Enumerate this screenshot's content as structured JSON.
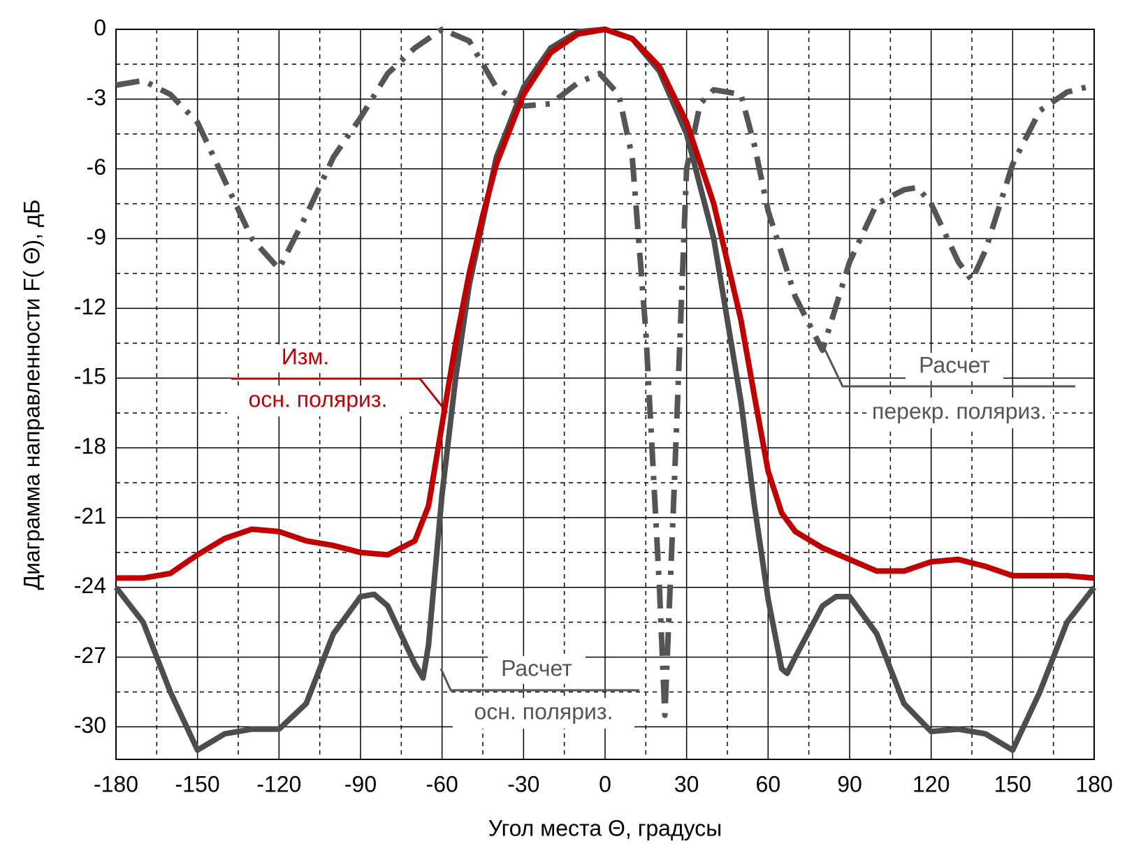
{
  "chart_data": {
    "type": "line",
    "xlabel": "Угол места Θ, градусы",
    "ylabel": "Диаграмма направленности F( Θ), дБ",
    "xlim": [
      -180,
      180
    ],
    "xticks": [
      -180,
      -150,
      -120,
      -90,
      -60,
      -30,
      0,
      30,
      60,
      90,
      120,
      150,
      180
    ],
    "xticks_minor": [
      -165,
      -135,
      -105,
      -75,
      -45,
      -15,
      15,
      45,
      75,
      105,
      135,
      165
    ],
    "ylim": [
      -31.4,
      0
    ],
    "yticks": [
      0,
      -3,
      -6,
      -9,
      -12,
      -15,
      -18,
      -21,
      -24,
      -27,
      -30
    ],
    "yticks_minor": [
      -1.5,
      -4.5,
      -7.5,
      -10.5,
      -13.5,
      -16.5,
      -19.5,
      -22.5,
      -25.5,
      -28.5
    ],
    "grid": true,
    "series": [
      {
        "color": "#555555",
        "linestyle": "dashdot",
        "x": [
          -180,
          -170,
          -160,
          -150,
          -140,
          -130,
          -120,
          -110,
          -100,
          -90,
          -80,
          -70,
          -60,
          -50,
          -40,
          -30,
          -20,
          -10,
          -2,
          5,
          10,
          15,
          20,
          22,
          25,
          28,
          30,
          35,
          40,
          50,
          55,
          60,
          70,
          80,
          90,
          100,
          110,
          115,
          120,
          130,
          135,
          140,
          150,
          160,
          170,
          180
        ],
        "values": [
          -2.4,
          -2.2,
          -2.8,
          -4,
          -6.5,
          -9,
          -10.3,
          -8,
          -5.5,
          -3.8,
          -1.9,
          -0.8,
          0,
          -0.5,
          -2.5,
          -3.3,
          -3.2,
          -2.3,
          -1.9,
          -2.8,
          -5.5,
          -13,
          -24,
          -29.5,
          -21,
          -12,
          -6,
          -3.2,
          -2.6,
          -2.8,
          -5,
          -7.8,
          -11.5,
          -13.8,
          -10,
          -7.5,
          -6.9,
          -6.8,
          -7.5,
          -10,
          -10.8,
          -9.5,
          -5.8,
          -3.5,
          -2.7,
          -2.4
        ]
      },
      {
        "color": "#4d4d4d",
        "linestyle": "solid",
        "x": [
          -180,
          -170,
          -160,
          -150,
          -140,
          -130,
          -120,
          -110,
          -100,
          -90,
          -85,
          -80,
          -70,
          -67,
          -65,
          -60,
          -55,
          -50,
          -40,
          -30,
          -20,
          -10,
          0,
          10,
          20,
          30,
          40,
          50,
          55,
          60,
          65,
          67,
          70,
          80,
          85,
          90,
          100,
          110,
          120,
          130,
          140,
          150,
          160,
          170,
          180
        ],
        "values": [
          -24,
          -25.5,
          -28.5,
          -31,
          -30.3,
          -30.1,
          -30.1,
          -29,
          -26,
          -24.4,
          -24.3,
          -24.8,
          -27.3,
          -27.9,
          -26.5,
          -20,
          -15,
          -11,
          -5.5,
          -2.5,
          -0.8,
          -0.1,
          0,
          -0.4,
          -1.8,
          -4.5,
          -9,
          -16,
          -20.5,
          -24.5,
          -27.5,
          -27.7,
          -27,
          -24.8,
          -24.4,
          -24.4,
          -26,
          -29,
          -30.2,
          -30.1,
          -30.3,
          -31,
          -28.5,
          -25.5,
          -24
        ]
      },
      {
        "color": "#c00000",
        "linestyle": "solid",
        "x": [
          -180,
          -170,
          -160,
          -150,
          -140,
          -130,
          -120,
          -110,
          -100,
          -90,
          -80,
          -70,
          -65,
          -60,
          -55,
          -50,
          -45,
          -40,
          -30,
          -20,
          -10,
          0,
          10,
          20,
          30,
          40,
          50,
          55,
          60,
          65,
          70,
          80,
          90,
          100,
          110,
          120,
          130,
          140,
          150,
          160,
          170,
          180
        ],
        "values": [
          -23.6,
          -23.6,
          -23.4,
          -22.6,
          -21.9,
          -21.5,
          -21.6,
          -22,
          -22.2,
          -22.5,
          -22.6,
          -22,
          -20.5,
          -17,
          -13.5,
          -10.5,
          -8,
          -5.8,
          -2.8,
          -1,
          -0.2,
          0,
          -0.4,
          -1.6,
          -4,
          -7.5,
          -12.5,
          -15.8,
          -19,
          -20.8,
          -21.6,
          -22.3,
          -22.8,
          -23.3,
          -23.3,
          -22.9,
          -22.8,
          -23.1,
          -23.5,
          -23.5,
          -23.5,
          -23.6
        ]
      }
    ],
    "annotations": [
      {
        "lines": [
          "Изм.",
          "осн. поляриз."
        ],
        "color": "#c00000"
      },
      {
        "lines": [
          "Расчет",
          "осн. поляриз."
        ],
        "color": "#555555"
      },
      {
        "lines": [
          "Расчет",
          "перекр. поляриз."
        ],
        "color": "#555555"
      }
    ]
  }
}
